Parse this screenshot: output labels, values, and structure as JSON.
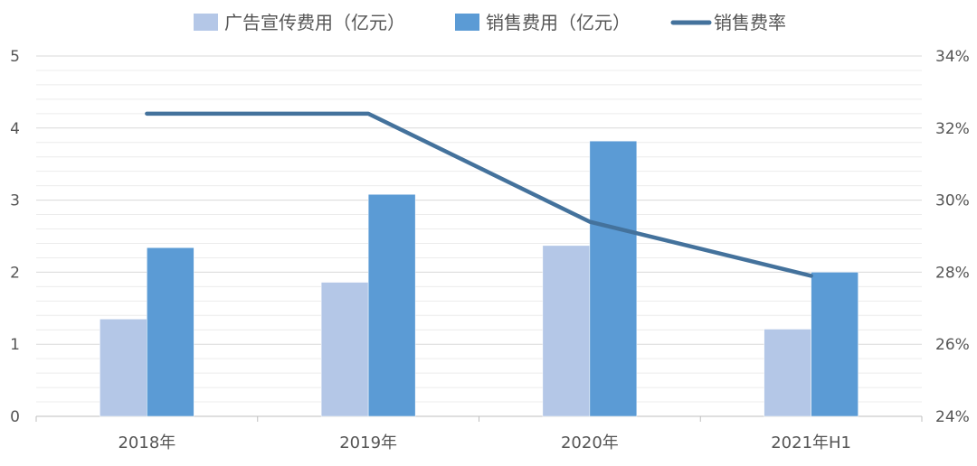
{
  "chart_data": {
    "type": "bar",
    "categories": [
      "2018年",
      "2019年",
      "2020年",
      "2021年H1"
    ],
    "series": [
      {
        "name": "广告宣传费用（亿元）",
        "type": "bar",
        "axis": "left",
        "color": "#b4c7e7",
        "values": [
          1.35,
          1.86,
          2.37,
          1.21
        ]
      },
      {
        "name": "销售费用（亿元）",
        "type": "bar",
        "axis": "left",
        "color": "#5b9bd5",
        "values": [
          2.34,
          3.08,
          3.82,
          2.0
        ]
      },
      {
        "name": "销售费率",
        "type": "line",
        "axis": "right",
        "color": "#44729c",
        "values": [
          32.4,
          32.4,
          29.4,
          27.9
        ]
      }
    ],
    "y_left": {
      "min": 0,
      "max": 5,
      "ticks": [
        0,
        1,
        2,
        3,
        4,
        5
      ],
      "tick_labels": [
        "0",
        "1",
        "2",
        "3",
        "4",
        "5"
      ]
    },
    "y_right": {
      "min": 24,
      "max": 34,
      "ticks": [
        24,
        26,
        28,
        30,
        32,
        34
      ],
      "tick_labels": [
        "24%",
        "26%",
        "28%",
        "30%",
        "32%",
        "34%"
      ]
    },
    "grid": true,
    "legend_position": "top"
  }
}
